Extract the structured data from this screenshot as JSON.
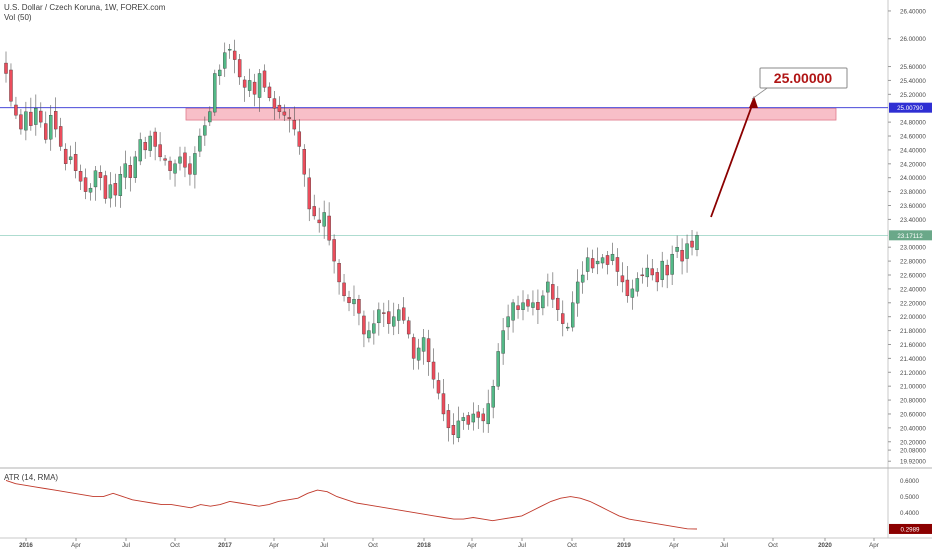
{
  "header": {
    "symbol": "U.S. Dollar / Czech Koruna, 1W, FOREX.com",
    "volume": "Vol (50)"
  },
  "indicator": {
    "label": "ATR (14, RMA)",
    "current_value": "0.2989",
    "price_ticks": [
      "0.6000",
      "0.5000",
      "0.4000"
    ]
  },
  "colors": {
    "up": "#53b987",
    "down": "#eb4d5c",
    "arrow": "#8b0000",
    "zone_fill": "#f6a9b6",
    "h_line": "#2f2fd3",
    "price_line": "#7ec8b5",
    "atr_line": "#c0392b"
  },
  "annotation": {
    "callout": "25.00000",
    "target_label": "25.00790",
    "current_price_label": "23.17112"
  },
  "chart_data": {
    "type": "candlestick",
    "title": "U.S. Dollar / Czech Koruna, 1W, FOREX.com",
    "timeframe": "1W",
    "x_ticks": [
      "2016",
      "Apr",
      "Jul",
      "Oct",
      "2017",
      "Apr",
      "Jul",
      "Oct",
      "2018",
      "Apr",
      "Jul",
      "Oct",
      "2019",
      "Apr",
      "Jul",
      "Oct",
      "2020",
      "Apr"
    ],
    "y_ticks": [
      "26.40000",
      "26.00000",
      "25.60000",
      "25.40000",
      "25.20000",
      "24.80000",
      "24.60000",
      "24.40000",
      "24.20000",
      "24.00000",
      "23.80000",
      "23.60000",
      "23.40000",
      "23.00000",
      "22.80000",
      "22.60000",
      "22.40000",
      "22.20000",
      "22.00000",
      "21.80000",
      "21.60000",
      "21.40000",
      "21.20000",
      "21.00000",
      "20.80000",
      "20.60000",
      "20.40000",
      "20.20000",
      "20.08000",
      "19.92000"
    ],
    "ylim": [
      19.88,
      26.5
    ],
    "grid": false,
    "horizontal_line": 25.0079,
    "last_price": 23.17112,
    "resistance_zone": [
      24.83,
      25.0
    ],
    "target": 25.0,
    "closes": [
      25.5,
      25.1,
      24.9,
      24.7,
      24.95,
      24.75,
      25.0,
      24.8,
      24.55,
      24.9,
      24.7,
      24.45,
      24.2,
      24.3,
      24.1,
      23.95,
      23.8,
      23.85,
      24.1,
      24.0,
      23.7,
      23.9,
      23.75,
      24.05,
      24.2,
      24.0,
      24.3,
      24.55,
      24.4,
      24.6,
      24.45,
      24.3,
      24.25,
      24.1,
      24.2,
      24.3,
      24.15,
      24.05,
      24.35,
      24.6,
      24.75,
      24.95,
      25.5,
      25.55,
      25.8,
      25.85,
      25.7,
      25.45,
      25.3,
      25.4,
      25.2,
      25.5,
      25.3,
      25.15,
      25.0,
      24.95,
      24.9,
      24.85,
      24.7,
      24.45,
      24.05,
      23.55,
      23.45,
      23.35,
      23.5,
      23.1,
      22.8,
      22.5,
      22.3,
      22.2,
      22.25,
      22.05,
      21.75,
      21.8,
      21.9,
      22.1,
      22.05,
      21.9,
      22.0,
      22.1,
      21.95,
      21.75,
      21.4,
      21.55,
      21.7,
      21.35,
      21.1,
      20.9,
      20.6,
      20.4,
      20.3,
      20.5,
      20.55,
      20.45,
      20.6,
      20.55,
      20.5,
      20.75,
      21.0,
      21.5,
      21.8,
      22.0,
      22.2,
      22.1,
      22.2,
      22.15,
      22.2,
      22.1,
      22.3,
      22.5,
      22.25,
      22.1,
      21.9,
      21.85,
      22.2,
      22.5,
      22.6,
      22.85,
      22.7,
      22.8,
      22.85,
      22.75,
      22.9,
      22.65,
      22.5,
      22.3,
      22.4,
      22.55,
      22.6,
      22.7,
      22.6,
      22.5,
      22.8,
      22.6,
      22.9,
      23.0,
      22.8,
      23.05,
      23.0,
      23.17
    ],
    "atr": [
      0.6,
      0.58,
      0.57,
      0.56,
      0.55,
      0.54,
      0.53,
      0.52,
      0.51,
      0.5,
      0.5,
      0.52,
      0.5,
      0.48,
      0.47,
      0.46,
      0.45,
      0.45,
      0.44,
      0.43,
      0.45,
      0.44,
      0.45,
      0.47,
      0.46,
      0.45,
      0.44,
      0.45,
      0.47,
      0.48,
      0.49,
      0.52,
      0.54,
      0.53,
      0.5,
      0.48,
      0.46,
      0.45,
      0.44,
      0.43,
      0.42,
      0.41,
      0.4,
      0.39,
      0.38,
      0.37,
      0.36,
      0.36,
      0.37,
      0.36,
      0.35,
      0.36,
      0.37,
      0.38,
      0.41,
      0.44,
      0.47,
      0.49,
      0.5,
      0.49,
      0.47,
      0.44,
      0.41,
      0.38,
      0.36,
      0.35,
      0.34,
      0.33,
      0.32,
      0.31,
      0.3,
      0.2989
    ]
  }
}
